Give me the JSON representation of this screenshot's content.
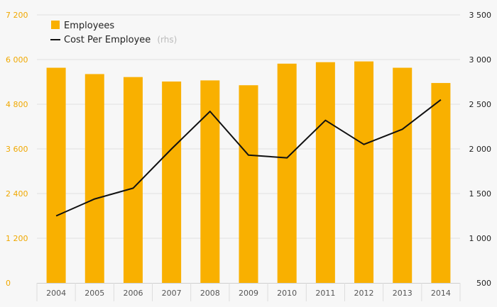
{
  "chart_data": {
    "type": "bar",
    "categories": [
      "2004",
      "2005",
      "2006",
      "2007",
      "2008",
      "2009",
      "2010",
      "2011",
      "2012",
      "2013",
      "2014"
    ],
    "series": [
      {
        "name": "Employees",
        "type": "bar",
        "axis": "left",
        "color": "#f9b000",
        "values": [
          5780,
          5610,
          5530,
          5410,
          5440,
          5310,
          5890,
          5930,
          5950,
          5780,
          5370
        ]
      },
      {
        "name": "Cost Per Employee",
        "suffix": "(rhs)",
        "type": "line",
        "axis": "right",
        "color": "#111111",
        "values": [
          1250,
          1440,
          1560,
          2000,
          2420,
          1930,
          1900,
          2320,
          2050,
          2220,
          2550
        ]
      }
    ],
    "y_left": {
      "range": [
        0,
        7200
      ],
      "ticks": [
        0,
        1200,
        2400,
        3600,
        4800,
        6000,
        7200
      ],
      "tick_labels": [
        "0",
        "1 200",
        "2 400",
        "3 600",
        "4 800",
        "6 000",
        "7 200"
      ],
      "color": "#f0a800"
    },
    "y_right": {
      "range": [
        500,
        3500
      ],
      "ticks": [
        500,
        1000,
        1500,
        2000,
        2500,
        3000,
        3500
      ],
      "tick_labels": [
        "500",
        "1 000",
        "1 500",
        "2 000",
        "2 500",
        "3 000",
        "3 500"
      ],
      "color": "#222222"
    },
    "grid": true,
    "legend_position": "top-left",
    "title": "",
    "xlabel": "",
    "ylabel": ""
  }
}
